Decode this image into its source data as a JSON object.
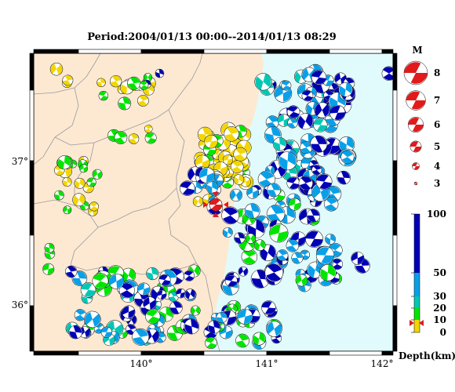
{
  "title": "Period:2004/01/13 00:00--2014/01/13 08:29",
  "map": {
    "lon_ticks": [
      "140°",
      "141°",
      "142°"
    ],
    "lat_ticks": [
      "37°",
      "36°"
    ],
    "land_color": "#fde9d2",
    "sea_color": "#e1fbfc",
    "mainshock_color": "#e11b1b"
  },
  "magnitude_legend": {
    "heading": "M",
    "entries": [
      {
        "label": "8",
        "magnitude": 8
      },
      {
        "label": "7",
        "magnitude": 7
      },
      {
        "label": "6",
        "magnitude": 6
      },
      {
        "label": "5",
        "magnitude": 5
      },
      {
        "label": "4",
        "magnitude": 4
      },
      {
        "label": "3",
        "magnitude": 3
      }
    ],
    "color": "#e11b1b"
  },
  "depth_legend": {
    "title": "Depth(km)",
    "ticks": [
      "100",
      "50",
      "30",
      "20",
      "10",
      "0"
    ],
    "bands": [
      {
        "from": 0,
        "to": 10,
        "color": "#f2d600"
      },
      {
        "from": 10,
        "to": 20,
        "color": "#00e600"
      },
      {
        "from": 20,
        "to": 30,
        "color": "#00c8b4"
      },
      {
        "from": 30,
        "to": 50,
        "color": "#0aa0e8"
      },
      {
        "from": 50,
        "to": 100,
        "color": "#0000b4"
      }
    ]
  }
}
